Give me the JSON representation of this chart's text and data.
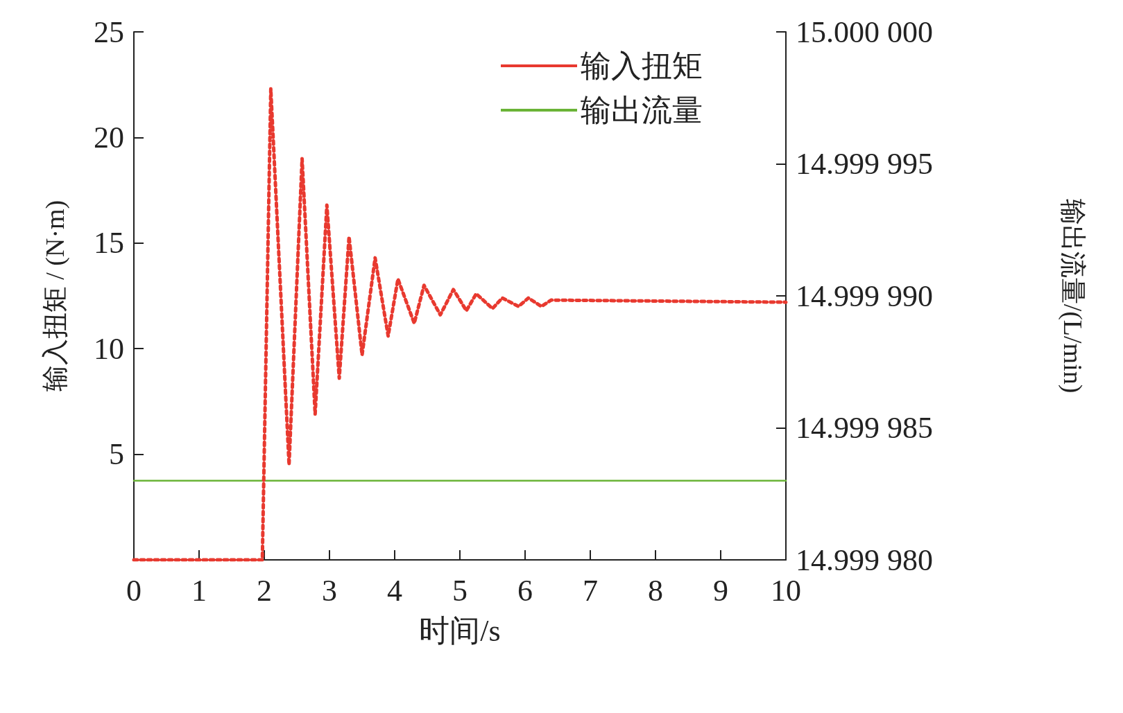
{
  "chart_data": {
    "type": "line",
    "xlabel": "时间/s",
    "ylabel": "输入扭矩 / (N·m)",
    "y2label": "输出流量/(L/min)",
    "xlim": [
      0,
      10
    ],
    "xticks": [
      0,
      1,
      2,
      3,
      4,
      5,
      6,
      7,
      8,
      9,
      10
    ],
    "ylim": [
      0,
      25
    ],
    "yticks": [
      {
        "value": 0,
        "label": null
      },
      5,
      10,
      15,
      20,
      25
    ],
    "y2lim": [
      14.99998,
      15
    ],
    "y2ticks": [
      {
        "value": 14.99998,
        "label": "14.999 980"
      },
      {
        "value": 14.999985,
        "label": "14.999 985"
      },
      {
        "value": 14.99999,
        "label": "14.999 990"
      },
      {
        "value": 14.999995,
        "label": "14.999 995"
      },
      {
        "value": 15,
        "label": "15.000 000"
      }
    ],
    "grid": false,
    "legend": "top right",
    "marker": "none",
    "series": [
      {
        "name": "输入扭矩",
        "color": "#e8392f",
        "line_style": "dotted",
        "x": [
          0,
          1.97,
          2.1,
          2.38,
          2.58,
          2.78,
          2.96,
          3.15,
          3.3,
          3.5,
          3.7,
          3.9,
          4.05,
          4.3,
          4.45,
          4.7,
          4.9,
          5.1,
          5.25,
          5.5,
          5.65,
          5.9,
          6.05,
          6.25,
          6.4,
          10
        ],
        "values": [
          0,
          0,
          22.3,
          4.5,
          19.0,
          6.9,
          16.8,
          8.6,
          15.3,
          9.7,
          14.3,
          10.6,
          13.3,
          11.2,
          13.0,
          11.6,
          12.8,
          11.8,
          12.6,
          11.9,
          12.4,
          12.0,
          12.4,
          12.0,
          12.3,
          12.2
        ]
      },
      {
        "name": "输出流量",
        "color": "#6ab437",
        "line_style": "solid",
        "axis": "y2",
        "x": [
          0,
          10
        ],
        "values": [
          14.999983,
          14.999983
        ]
      }
    ]
  }
}
